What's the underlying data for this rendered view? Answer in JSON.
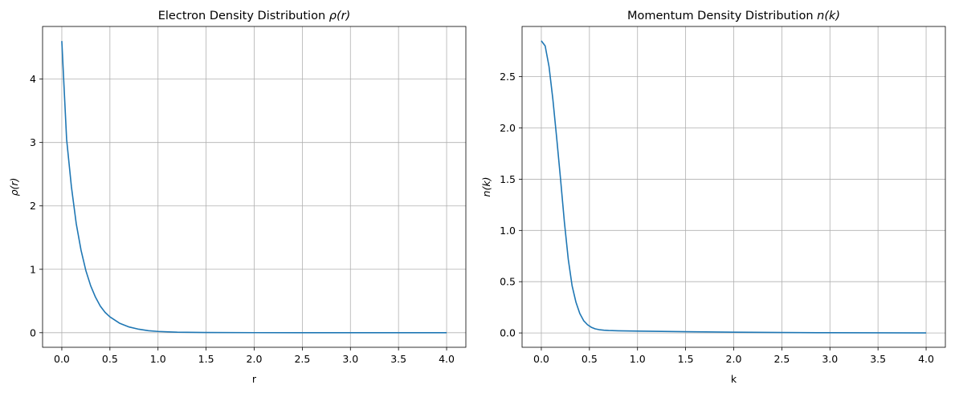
{
  "chart_data": [
    {
      "type": "line",
      "title": "Electron Density Distribution ρ(r)",
      "title_prefix": "Electron Density Distribution ",
      "title_math": "ρ(r)",
      "xlabel": "r",
      "ylabel": "ρ(r)",
      "xlim": [
        -0.2,
        4.2
      ],
      "ylim": [
        -0.23,
        4.83
      ],
      "xticks": [
        0.0,
        0.5,
        1.0,
        1.5,
        2.0,
        2.5,
        3.0,
        3.5,
        4.0
      ],
      "xtick_labels": [
        "0.0",
        "0.5",
        "1.0",
        "1.5",
        "2.0",
        "2.5",
        "3.0",
        "3.5",
        "4.0"
      ],
      "yticks": [
        0,
        1,
        2,
        3,
        4
      ],
      "ytick_labels": [
        "0",
        "1",
        "2",
        "3",
        "4"
      ],
      "grid": true,
      "color": "#1f77b4",
      "series": [
        {
          "name": "rho",
          "x": [
            0.0,
            0.05,
            0.1,
            0.15,
            0.2,
            0.25,
            0.3,
            0.35,
            0.4,
            0.45,
            0.5,
            0.6,
            0.7,
            0.8,
            0.9,
            1.0,
            1.2,
            1.5,
            2.0,
            2.5,
            3.0,
            3.5,
            4.0
          ],
          "y": [
            4.6,
            3.05,
            2.3,
            1.72,
            1.3,
            0.98,
            0.74,
            0.56,
            0.42,
            0.32,
            0.25,
            0.15,
            0.09,
            0.055,
            0.032,
            0.02,
            0.008,
            0.003,
            0.001,
            0.0,
            0.0,
            0.0,
            0.0
          ]
        }
      ]
    },
    {
      "type": "line",
      "title": "Momentum Density Distribution n(k)",
      "title_prefix": "Momentum Density Distribution ",
      "title_math": "n(k)",
      "xlabel": "k",
      "ylabel": "n(k)",
      "xlim": [
        -0.2,
        4.2
      ],
      "ylim": [
        -0.14,
        2.99
      ],
      "xticks": [
        0.0,
        0.5,
        1.0,
        1.5,
        2.0,
        2.5,
        3.0,
        3.5,
        4.0
      ],
      "xtick_labels": [
        "0.0",
        "0.5",
        "1.0",
        "1.5",
        "2.0",
        "2.5",
        "3.0",
        "3.5",
        "4.0"
      ],
      "yticks": [
        0.0,
        0.5,
        1.0,
        1.5,
        2.0,
        2.5
      ],
      "ytick_labels": [
        "0.0",
        "0.5",
        "1.0",
        "1.5",
        "2.0",
        "2.5"
      ],
      "grid": true,
      "color": "#1f77b4",
      "series": [
        {
          "name": "n",
          "x": [
            0.0,
            0.04,
            0.08,
            0.12,
            0.16,
            0.2,
            0.24,
            0.28,
            0.32,
            0.36,
            0.4,
            0.44,
            0.48,
            0.52,
            0.56,
            0.6,
            0.65,
            0.7,
            0.8,
            1.0,
            1.5,
            2.0,
            2.5,
            3.0,
            3.5,
            4.0
          ],
          "y": [
            2.85,
            2.8,
            2.6,
            2.28,
            1.9,
            1.5,
            1.08,
            0.72,
            0.46,
            0.3,
            0.19,
            0.12,
            0.08,
            0.055,
            0.04,
            0.032,
            0.027,
            0.024,
            0.021,
            0.018,
            0.012,
            0.007,
            0.004,
            0.002,
            0.001,
            0.0
          ]
        }
      ]
    }
  ]
}
